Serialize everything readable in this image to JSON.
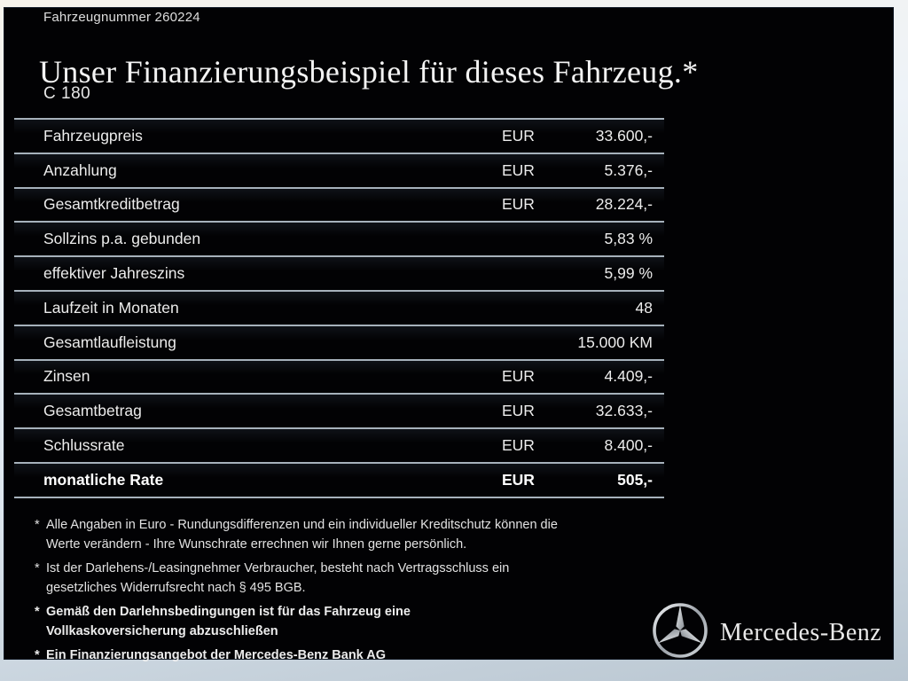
{
  "page": {
    "vehicle_number": "Fahrzeugnummer 260224",
    "title": "Unser Finanzierungsbeispiel für dieses Fahrzeug.*",
    "model": "C 180"
  },
  "table": {
    "rows": [
      {
        "label": "Fahrzeugpreis",
        "currency": "EUR",
        "value": "33.600,-",
        "bold": false
      },
      {
        "label": "Anzahlung",
        "currency": "EUR",
        "value": "5.376,-",
        "bold": false
      },
      {
        "label": "Gesamtkreditbetrag",
        "currency": "EUR",
        "value": "28.224,-",
        "bold": false
      },
      {
        "label": "Sollzins p.a. gebunden",
        "currency": "",
        "value": "5,83 %",
        "bold": false
      },
      {
        "label": "effektiver Jahreszins",
        "currency": "",
        "value": "5,99 %",
        "bold": false
      },
      {
        "label": "Laufzeit in Monaten",
        "currency": "",
        "value": "48",
        "bold": false
      },
      {
        "label": "Gesamtlaufleistung",
        "currency": "",
        "value": "15.000 KM",
        "bold": false
      },
      {
        "label": "Zinsen",
        "currency": "EUR",
        "value": "4.409,-",
        "bold": false
      },
      {
        "label": "Gesamtbetrag",
        "currency": "EUR",
        "value": "32.633,-",
        "bold": false
      },
      {
        "label": "Schlussrate",
        "currency": "EUR",
        "value": "8.400,-",
        "bold": false
      },
      {
        "label": "monatliche Rate",
        "currency": "EUR",
        "value": "505,-",
        "bold": true
      }
    ]
  },
  "footnotes": [
    {
      "marker": "*",
      "bold": false,
      "lines": [
        "Alle Angaben in Euro - Rundungsdifferenzen und ein individueller Kreditschutz können die",
        "Werte verändern - Ihre Wunschrate errechnen wir Ihnen gerne persönlich."
      ]
    },
    {
      "marker": "*",
      "bold": false,
      "lines": [
        "Ist der Darlehens-/Leasingnehmer Verbraucher, besteht nach Vertragsschluss ein",
        "gesetzliches Widerrufsrecht nach § 495 BGB."
      ]
    },
    {
      "marker": "*",
      "bold": true,
      "lines": [
        "Gemäß den Darlehnsbedingungen ist für das Fahrzeug eine",
        "Vollkaskoversicherung abzuschließen"
      ]
    },
    {
      "marker": "*",
      "bold": true,
      "lines": [
        "Ein Finanzierungsangebot der Mercedes-Benz Bank AG"
      ]
    }
  ],
  "brand": {
    "logo_icon": "mercedes-star-icon",
    "wordmark": "Mercedes-Benz"
  },
  "colors": {
    "panel_background": "#020204",
    "frame_top": "#f4f8fc",
    "frame_bottom": "#b9c6d1",
    "text": "#ececec",
    "separator": "#a6b1bb"
  }
}
